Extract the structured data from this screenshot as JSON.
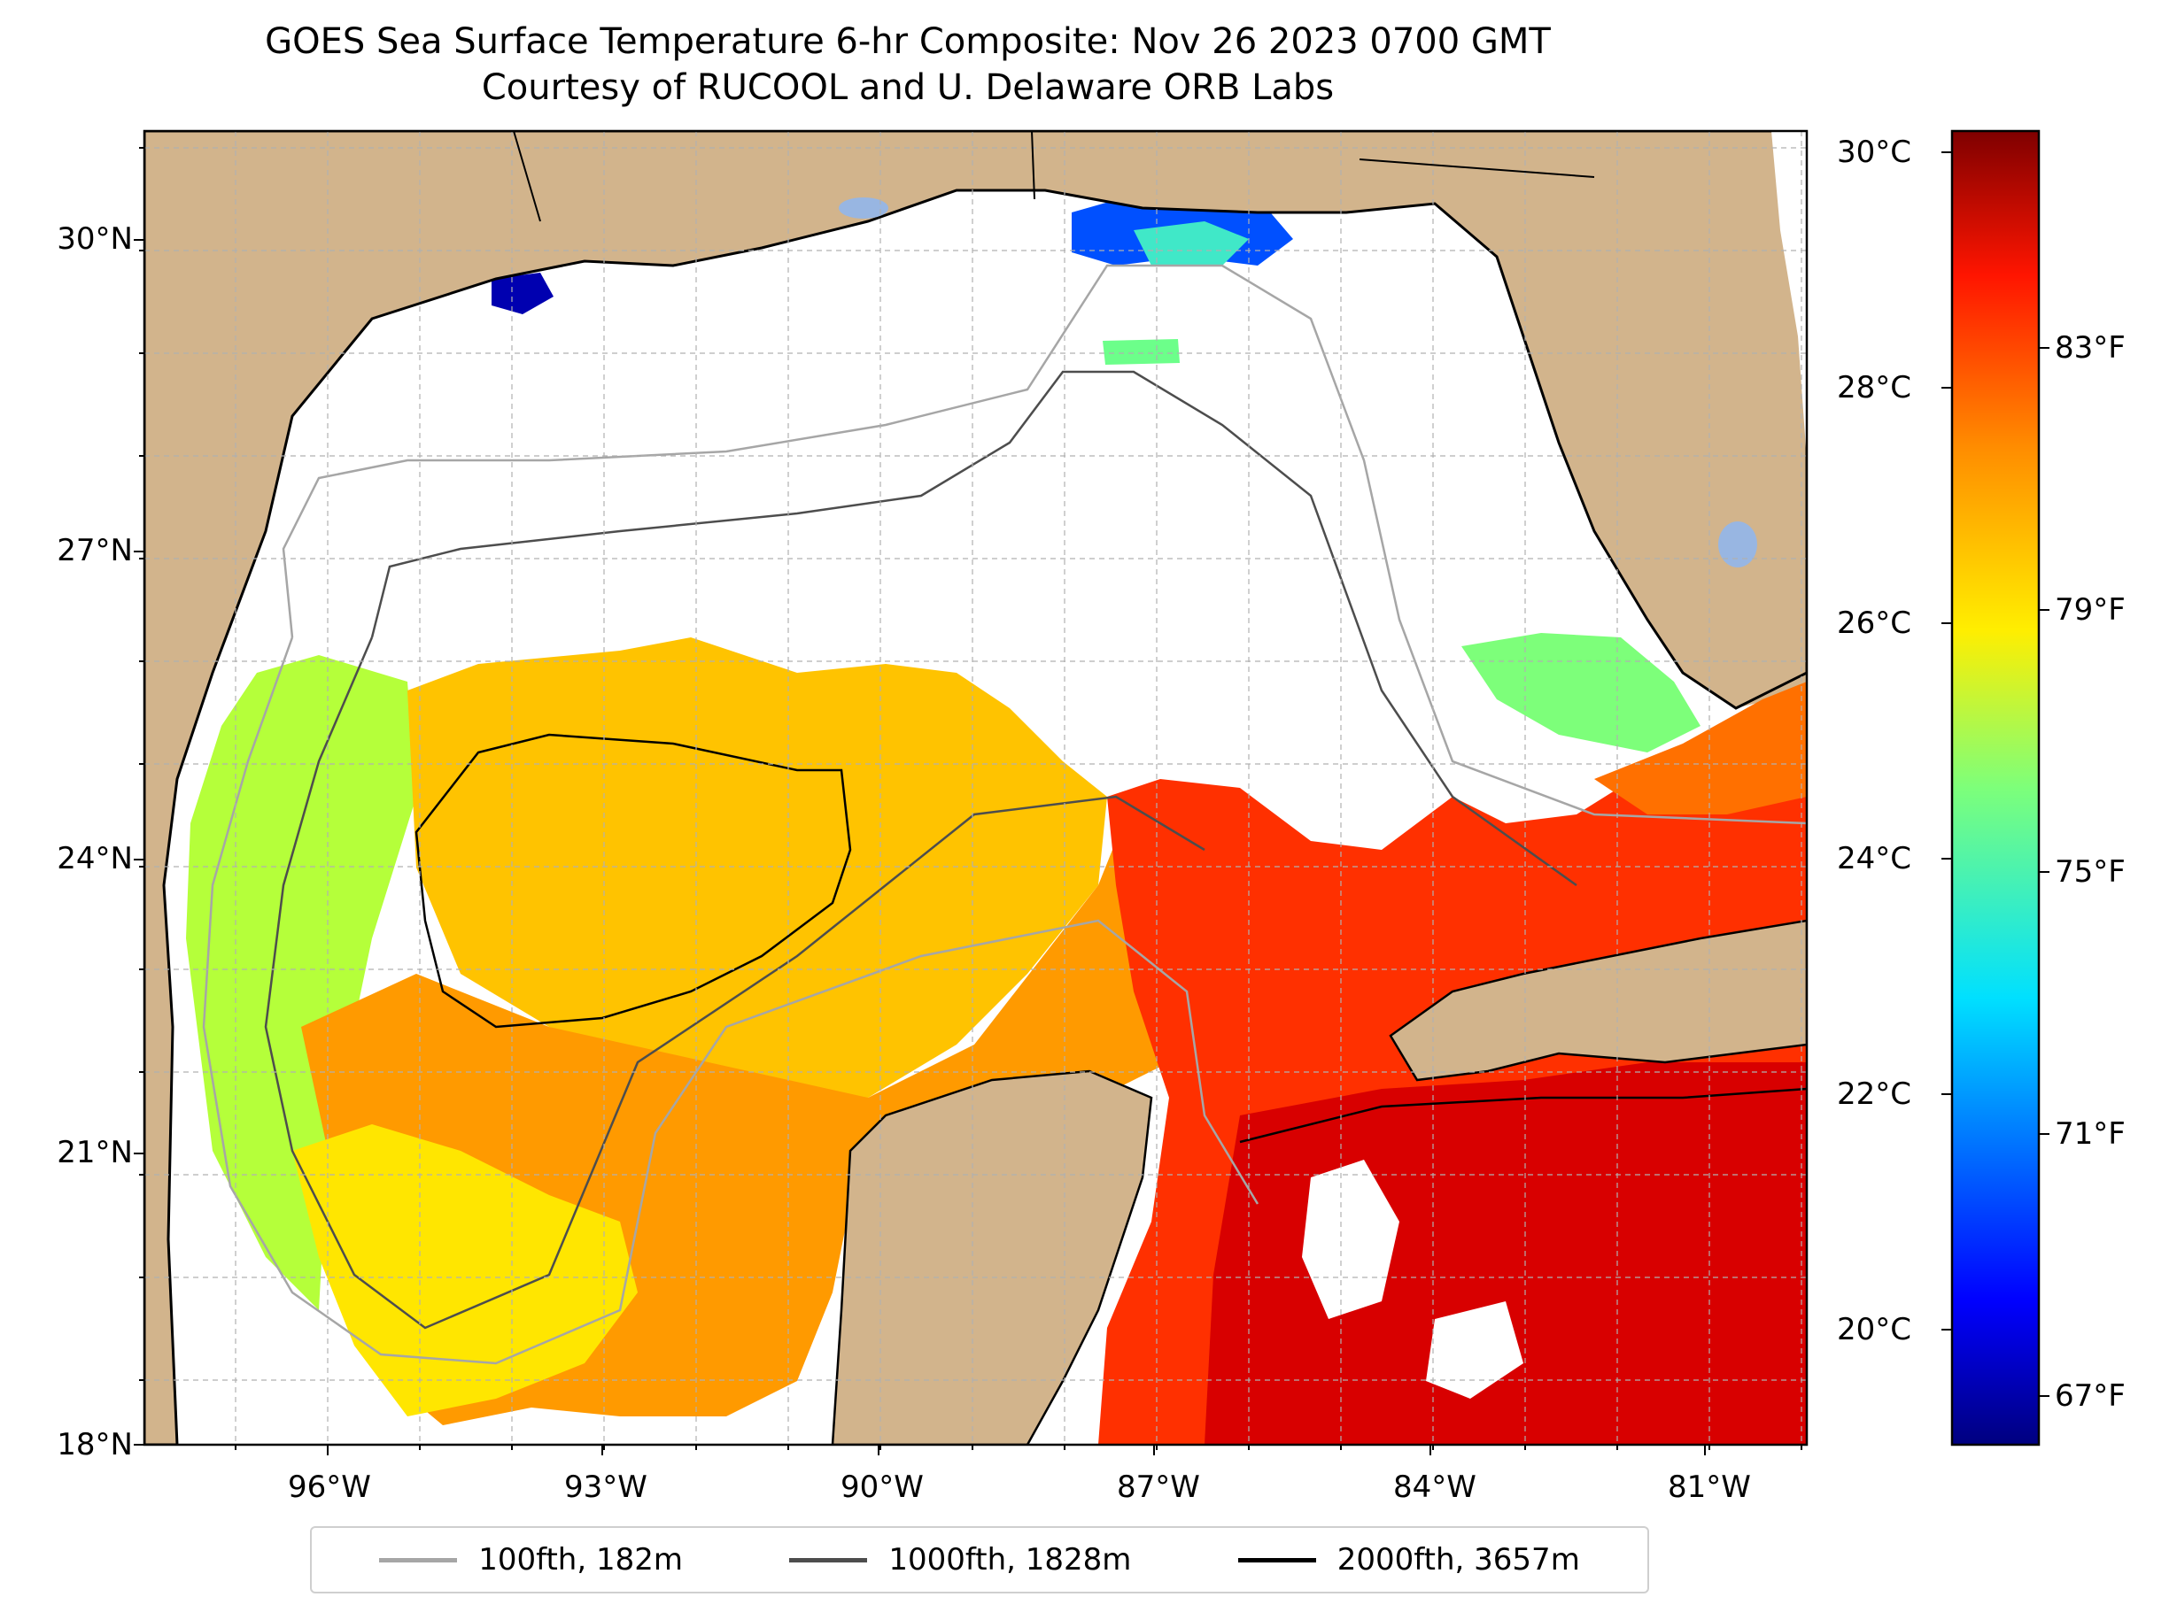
{
  "title": {
    "line1": "GOES Sea Surface Temperature 6-hr Composite: Nov 26 2023 0700 GMT",
    "line2": "Courtesy of RUCOOL and U. Delaware ORB Labs"
  },
  "map": {
    "lat_ticks": [
      "30°N",
      "27°N",
      "24°N",
      "21°N",
      "18°N"
    ],
    "lon_ticks": [
      "96°W",
      "93°W",
      "90°W",
      "87°W",
      "84°W",
      "81°W"
    ],
    "land_color": "#d2b48c",
    "lake_color": "#98b6e2",
    "cloud_color": "#ffffff",
    "gridlines": true,
    "grid_style": "dashed",
    "bathymetry_contours": [
      {
        "name": "100fth, 182m",
        "color": "#a6a6a6"
      },
      {
        "name": "1000fth, 1828m",
        "color": "#4d4d4d"
      },
      {
        "name": "2000fth, 3657m",
        "color": "#000000"
      }
    ]
  },
  "colorbar": {
    "colormap": "jet",
    "celsius_labels": [
      "30°C",
      "28°C",
      "26°C",
      "24°C",
      "22°C",
      "20°C"
    ],
    "fahrenheit_labels": [
      "83°F",
      "79°F",
      "75°F",
      "71°F",
      "67°F"
    ]
  },
  "legend": {
    "items": [
      {
        "label": "100fth, 182m",
        "color": "#a6a6a6"
      },
      {
        "label": "1000fth, 1828m",
        "color": "#4d4d4d"
      },
      {
        "label": "2000fth, 3657m",
        "color": "#000000"
      }
    ]
  }
}
